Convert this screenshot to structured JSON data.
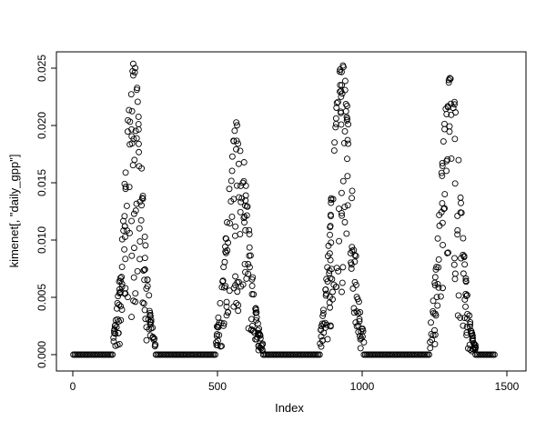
{
  "figure": {
    "background": "#ffffff"
  },
  "chart_data": {
    "type": "scatter",
    "marker": "open-circle",
    "title": "",
    "xlabel": "Index",
    "ylabel": "kimenet[, \"daily_gpp\"]",
    "xlim": [
      0,
      1500
    ],
    "ylim": [
      0.0,
      0.025
    ],
    "xticks": [
      0,
      500,
      1000,
      1500
    ],
    "xtick_labels": [
      "0",
      "500",
      "1000",
      "1500"
    ],
    "yticks": [
      0.0,
      0.005,
      0.01,
      0.015,
      0.02,
      0.025
    ],
    "ytick_labels": [
      "0.000",
      "0.005",
      "0.010",
      "0.015",
      "0.020",
      "0.025"
    ],
    "grid": false,
    "legend": "none",
    "point_color": "#000000",
    "point_radius": 3,
    "seed": 42,
    "zero_runs": [
      {
        "x0": 2,
        "x1": 138,
        "y": 0.0
      },
      {
        "x0": 287,
        "x1": 494,
        "y": 0.0
      },
      {
        "x0": 658,
        "x1": 853,
        "y": 0.0
      },
      {
        "x0": 1006,
        "x1": 1233,
        "y": 0.0
      },
      {
        "x0": 1392,
        "x1": 1458,
        "y": 0.0
      }
    ],
    "peaks": [
      {
        "x0": 140,
        "x1": 286,
        "center": 210,
        "width": 30,
        "max": 0.0255,
        "n": 145
      },
      {
        "x0": 495,
        "x1": 658,
        "center": 570,
        "width": 35,
        "max": 0.0205,
        "n": 145
      },
      {
        "x0": 854,
        "x1": 1006,
        "center": 930,
        "width": 33,
        "max": 0.0255,
        "n": 145
      },
      {
        "x0": 1234,
        "x1": 1392,
        "center": 1305,
        "width": 33,
        "max": 0.0245,
        "n": 135
      }
    ]
  }
}
